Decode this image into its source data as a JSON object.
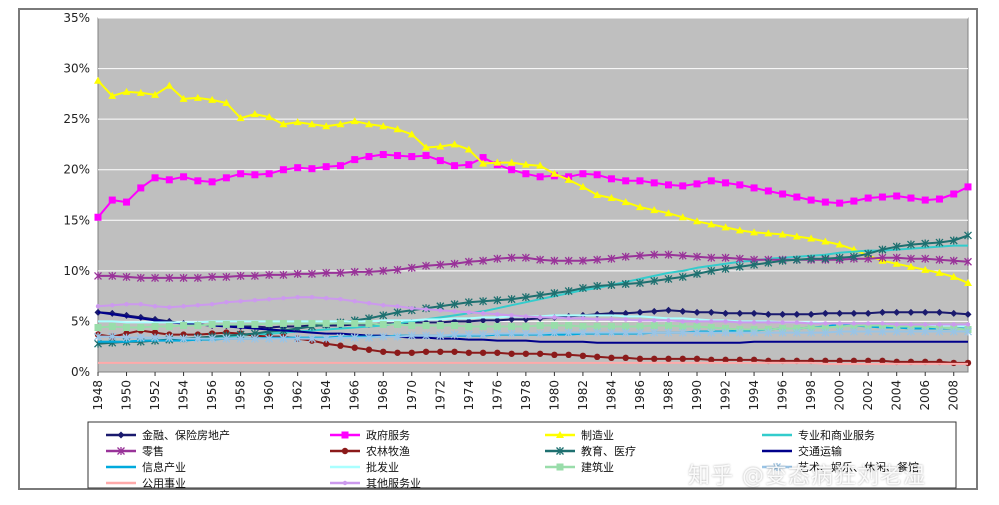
{
  "chart_data": {
    "type": "line",
    "x": [
      1948,
      1949,
      1950,
      1951,
      1952,
      1953,
      1954,
      1955,
      1956,
      1957,
      1958,
      1959,
      1960,
      1961,
      1962,
      1963,
      1964,
      1965,
      1966,
      1967,
      1968,
      1969,
      1970,
      1971,
      1972,
      1973,
      1974,
      1975,
      1976,
      1977,
      1978,
      1979,
      1980,
      1981,
      1982,
      1983,
      1984,
      1985,
      1986,
      1987,
      1988,
      1989,
      1990,
      1991,
      1992,
      1993,
      1994,
      1995,
      1996,
      1997,
      1998,
      1999,
      2000,
      2001,
      2002,
      2003,
      2004,
      2005,
      2006,
      2007,
      2008,
      2009
    ],
    "x_tick_labels": [
      "1948",
      "1950",
      "1952",
      "1954",
      "1956",
      "1958",
      "1960",
      "1962",
      "1964",
      "1966",
      "1968",
      "1970",
      "1972",
      "1974",
      "1976",
      "1978",
      "1980",
      "1982",
      "1984",
      "1986",
      "1988",
      "1990",
      "1992",
      "1994",
      "1996",
      "1998",
      "2000",
      "2002",
      "2004",
      "2006",
      "2008"
    ],
    "y_tick_labels": [
      "0%",
      "5%",
      "10%",
      "15%",
      "20%",
      "25%",
      "30%",
      "35%"
    ],
    "ylim": [
      0,
      35
    ],
    "grid": true,
    "legend_placement": "bottom",
    "series": [
      {
        "name": "金融、保险房地产",
        "color": "#1a1a6e",
        "marker": "diamond",
        "values": [
          5.9,
          5.8,
          5.6,
          5.4,
          5.2,
          5.0,
          4.8,
          4.7,
          4.6,
          4.6,
          4.5,
          4.5,
          4.4,
          4.5,
          4.5,
          4.6,
          4.6,
          4.6,
          4.7,
          4.7,
          4.8,
          4.8,
          4.9,
          4.9,
          4.9,
          5.0,
          5.0,
          5.1,
          5.1,
          5.2,
          5.2,
          5.3,
          5.4,
          5.5,
          5.6,
          5.7,
          5.8,
          5.8,
          5.9,
          6.0,
          6.1,
          6.0,
          5.9,
          5.9,
          5.8,
          5.8,
          5.8,
          5.7,
          5.7,
          5.7,
          5.7,
          5.8,
          5.8,
          5.8,
          5.8,
          5.9,
          5.9,
          5.9,
          5.9,
          5.9,
          5.8,
          5.7
        ]
      },
      {
        "name": "政府服务",
        "color": "#ff00ff",
        "marker": "square",
        "values": [
          15.3,
          17.0,
          16.8,
          18.2,
          19.2,
          19.0,
          19.3,
          18.9,
          18.8,
          19.2,
          19.6,
          19.5,
          19.6,
          20.0,
          20.2,
          20.1,
          20.3,
          20.4,
          21.0,
          21.3,
          21.5,
          21.4,
          21.3,
          21.4,
          20.9,
          20.4,
          20.5,
          21.2,
          20.5,
          20.0,
          19.6,
          19.3,
          19.4,
          19.3,
          19.6,
          19.5,
          19.1,
          18.9,
          18.9,
          18.7,
          18.5,
          18.4,
          18.6,
          18.9,
          18.7,
          18.5,
          18.2,
          17.9,
          17.6,
          17.3,
          17.0,
          16.8,
          16.7,
          16.9,
          17.2,
          17.3,
          17.4,
          17.2,
          17.0,
          17.1,
          17.6,
          18.3
        ]
      },
      {
        "name": "制造业",
        "color": "#ffff00",
        "marker": "triangle",
        "values": [
          28.8,
          27.3,
          27.7,
          27.6,
          27.4,
          28.3,
          27.0,
          27.1,
          26.9,
          26.6,
          25.1,
          25.5,
          25.2,
          24.5,
          24.7,
          24.5,
          24.3,
          24.5,
          24.8,
          24.5,
          24.3,
          24.0,
          23.5,
          22.2,
          22.3,
          22.5,
          22.0,
          20.6,
          20.7,
          20.7,
          20.5,
          20.4,
          19.6,
          19.0,
          18.3,
          17.5,
          17.2,
          16.8,
          16.3,
          16.0,
          15.7,
          15.3,
          14.9,
          14.6,
          14.3,
          14.0,
          13.8,
          13.7,
          13.6,
          13.4,
          13.2,
          12.9,
          12.6,
          12.1,
          11.5,
          11.0,
          10.7,
          10.4,
          10.1,
          9.8,
          9.4,
          8.8
        ]
      },
      {
        "name": "专业和商业服务",
        "color": "#33cccc",
        "marker": "none",
        "values": [
          3.0,
          3.0,
          3.0,
          3.1,
          3.1,
          3.2,
          3.2,
          3.3,
          3.4,
          3.5,
          3.6,
          3.7,
          3.8,
          3.9,
          4.0,
          4.1,
          4.2,
          4.3,
          4.4,
          4.5,
          4.6,
          4.8,
          5.0,
          5.2,
          5.4,
          5.6,
          5.8,
          6.0,
          6.3,
          6.6,
          6.9,
          7.2,
          7.5,
          7.8,
          8.1,
          8.3,
          8.6,
          8.9,
          9.2,
          9.5,
          9.8,
          10.0,
          10.3,
          10.5,
          10.7,
          10.9,
          11.0,
          11.2,
          11.3,
          11.4,
          11.5,
          11.6,
          11.8,
          11.9,
          12.0,
          12.0,
          12.1,
          12.2,
          12.3,
          12.4,
          12.5,
          12.5
        ]
      },
      {
        "name": "零售",
        "color": "#993399",
        "marker": "star",
        "values": [
          9.5,
          9.5,
          9.4,
          9.3,
          9.3,
          9.3,
          9.3,
          9.3,
          9.4,
          9.4,
          9.5,
          9.5,
          9.6,
          9.6,
          9.7,
          9.7,
          9.8,
          9.8,
          9.9,
          9.9,
          10.0,
          10.1,
          10.3,
          10.5,
          10.6,
          10.7,
          10.9,
          11.0,
          11.2,
          11.3,
          11.3,
          11.1,
          11.0,
          11.0,
          11.0,
          11.1,
          11.2,
          11.4,
          11.5,
          11.6,
          11.6,
          11.5,
          11.4,
          11.3,
          11.3,
          11.2,
          11.1,
          11.1,
          11.1,
          11.1,
          11.1,
          11.1,
          11.1,
          11.2,
          11.2,
          11.3,
          11.3,
          11.2,
          11.2,
          11.1,
          11.0,
          10.9
        ]
      },
      {
        "name": "农林牧渔",
        "color": "#8b1a1a",
        "marker": "circle",
        "values": [
          3.7,
          3.5,
          3.8,
          4.1,
          3.9,
          3.7,
          3.7,
          3.7,
          3.8,
          3.9,
          3.8,
          3.6,
          3.5,
          3.5,
          3.3,
          3.1,
          2.8,
          2.6,
          2.4,
          2.2,
          2.0,
          1.9,
          1.9,
          2.0,
          2.0,
          2.0,
          1.9,
          1.9,
          1.9,
          1.8,
          1.8,
          1.8,
          1.7,
          1.7,
          1.6,
          1.5,
          1.4,
          1.4,
          1.3,
          1.3,
          1.3,
          1.3,
          1.3,
          1.2,
          1.2,
          1.2,
          1.2,
          1.1,
          1.1,
          1.1,
          1.1,
          1.1,
          1.1,
          1.1,
          1.1,
          1.1,
          1.0,
          1.0,
          1.0,
          1.0,
          0.9,
          0.9
        ]
      },
      {
        "name": "教育、医疗",
        "color": "#1e7070",
        "marker": "star",
        "values": [
          2.8,
          2.9,
          3.0,
          3.0,
          3.1,
          3.2,
          3.3,
          3.4,
          3.5,
          3.6,
          3.7,
          3.8,
          4.0,
          4.1,
          4.3,
          4.5,
          4.7,
          4.9,
          5.1,
          5.3,
          5.6,
          5.9,
          6.1,
          6.3,
          6.5,
          6.7,
          6.9,
          7.0,
          7.1,
          7.2,
          7.4,
          7.6,
          7.8,
          8.0,
          8.3,
          8.5,
          8.6,
          8.7,
          8.8,
          9.0,
          9.2,
          9.4,
          9.7,
          10.0,
          10.2,
          10.4,
          10.6,
          10.8,
          11.0,
          11.1,
          11.2,
          11.2,
          11.3,
          11.4,
          11.7,
          12.1,
          12.4,
          12.6,
          12.7,
          12.8,
          13.0,
          13.5
        ]
      },
      {
        "name": "交通运输",
        "color": "#00008b",
        "marker": "none",
        "values": [
          5.9,
          5.7,
          5.5,
          5.3,
          5.1,
          4.9,
          4.8,
          4.7,
          4.6,
          4.5,
          4.4,
          4.3,
          4.2,
          4.1,
          4.0,
          3.9,
          3.8,
          3.8,
          3.7,
          3.6,
          3.6,
          3.5,
          3.4,
          3.4,
          3.3,
          3.3,
          3.2,
          3.2,
          3.1,
          3.1,
          3.1,
          3.0,
          3.0,
          3.0,
          3.0,
          2.9,
          2.9,
          2.9,
          2.9,
          2.9,
          2.9,
          2.9,
          2.9,
          2.9,
          2.9,
          2.9,
          3.0,
          3.0,
          3.0,
          3.0,
          3.0,
          3.0,
          3.0,
          3.0,
          3.0,
          3.0,
          3.0,
          3.0,
          3.0,
          3.0,
          3.0,
          3.0
        ]
      },
      {
        "name": "信息产业",
        "color": "#00aadd",
        "marker": "none",
        "values": [
          3.0,
          3.0,
          3.0,
          3.1,
          3.1,
          3.1,
          3.1,
          3.2,
          3.2,
          3.3,
          3.3,
          3.3,
          3.4,
          3.4,
          3.4,
          3.4,
          3.4,
          3.5,
          3.5,
          3.5,
          3.5,
          3.6,
          3.6,
          3.6,
          3.6,
          3.6,
          3.6,
          3.6,
          3.7,
          3.7,
          3.7,
          3.7,
          3.7,
          3.7,
          3.8,
          3.8,
          3.8,
          3.8,
          3.8,
          3.9,
          3.9,
          3.9,
          4.0,
          4.0,
          4.0,
          4.1,
          4.1,
          4.2,
          4.3,
          4.3,
          4.4,
          4.5,
          4.7,
          4.6,
          4.5,
          4.4,
          4.4,
          4.3,
          4.3,
          4.3,
          4.3,
          4.3
        ]
      },
      {
        "name": "批发业",
        "color": "#aaffff",
        "marker": "none",
        "values": [
          5.0,
          5.0,
          4.9,
          4.9,
          4.9,
          4.9,
          4.9,
          4.9,
          5.0,
          5.0,
          5.0,
          5.0,
          5.0,
          5.0,
          5.0,
          5.0,
          5.0,
          5.0,
          5.0,
          5.0,
          5.1,
          5.1,
          5.1,
          5.2,
          5.2,
          5.3,
          5.3,
          5.4,
          5.4,
          5.5,
          5.5,
          5.5,
          5.6,
          5.6,
          5.6,
          5.6,
          5.6,
          5.5,
          5.5,
          5.4,
          5.3,
          5.3,
          5.2,
          5.1,
          5.1,
          5.0,
          5.0,
          5.0,
          4.9,
          4.9,
          4.9,
          4.8,
          4.8,
          4.8,
          4.8,
          4.7,
          4.7,
          4.7,
          4.6,
          4.6,
          4.6,
          4.5
        ]
      },
      {
        "name": "建筑业",
        "color": "#99ddaa",
        "marker": "square",
        "values": [
          4.4,
          4.5,
          4.4,
          4.4,
          4.5,
          4.5,
          4.6,
          4.6,
          4.7,
          4.7,
          4.7,
          4.7,
          4.8,
          4.8,
          4.8,
          4.8,
          4.8,
          4.8,
          4.8,
          4.8,
          4.7,
          4.7,
          4.6,
          4.6,
          4.6,
          4.6,
          4.5,
          4.5,
          4.5,
          4.5,
          4.5,
          4.6,
          4.6,
          4.6,
          4.5,
          4.5,
          4.5,
          4.5,
          4.5,
          4.6,
          4.6,
          4.5,
          4.5,
          4.4,
          4.3,
          4.2,
          4.2,
          4.2,
          4.3,
          4.3,
          4.4,
          4.4,
          4.5,
          4.6,
          4.6,
          4.6,
          4.5,
          4.5,
          4.5,
          4.4,
          4.3,
          4.2
        ]
      },
      {
        "name": "艺术、娱乐、休闲、餐馆",
        "color": "#99c4e6",
        "marker": "star",
        "values": [
          3.5,
          3.5,
          3.4,
          3.4,
          3.4,
          3.4,
          3.3,
          3.3,
          3.3,
          3.3,
          3.3,
          3.3,
          3.3,
          3.3,
          3.3,
          3.3,
          3.3,
          3.4,
          3.4,
          3.4,
          3.5,
          3.5,
          3.6,
          3.6,
          3.6,
          3.7,
          3.7,
          3.7,
          3.8,
          3.8,
          3.8,
          3.8,
          3.9,
          3.9,
          3.9,
          3.9,
          3.9,
          3.9,
          3.9,
          3.9,
          3.9,
          3.9,
          3.9,
          3.9,
          3.9,
          3.9,
          3.9,
          3.9,
          3.9,
          3.9,
          3.9,
          3.9,
          4.0,
          4.0,
          4.0,
          4.0,
          4.0,
          4.0,
          4.0,
          4.0,
          4.0,
          4.0
        ]
      },
      {
        "name": "公用事业",
        "color": "#ffaaaa",
        "marker": "none",
        "values": [
          0.9,
          0.9,
          0.9,
          0.9,
          0.9,
          0.9,
          0.9,
          0.9,
          0.9,
          0.9,
          0.9,
          0.9,
          0.9,
          0.9,
          0.9,
          0.9,
          0.9,
          0.9,
          0.9,
          0.9,
          0.9,
          0.9,
          0.9,
          0.9,
          0.9,
          0.9,
          0.9,
          0.9,
          0.9,
          0.9,
          0.9,
          0.9,
          0.9,
          0.9,
          0.9,
          0.9,
          0.9,
          0.9,
          0.9,
          0.9,
          0.9,
          0.9,
          0.9,
          0.9,
          0.9,
          0.9,
          0.9,
          0.9,
          0.9,
          0.9,
          0.9,
          0.8,
          0.8,
          0.8,
          0.8,
          0.8,
          0.8,
          0.8,
          0.8,
          0.8,
          0.8,
          0.8
        ]
      },
      {
        "name": "其他服务业",
        "color": "#cc99ee",
        "marker": "dot",
        "values": [
          6.5,
          6.6,
          6.7,
          6.7,
          6.5,
          6.4,
          6.5,
          6.6,
          6.7,
          6.9,
          7.0,
          7.1,
          7.2,
          7.3,
          7.4,
          7.4,
          7.3,
          7.2,
          7.0,
          6.8,
          6.6,
          6.5,
          6.3,
          6.2,
          6.1,
          6.0,
          5.9,
          5.8,
          5.7,
          5.6,
          5.5,
          5.4,
          5.4,
          5.3,
          5.3,
          5.2,
          5.2,
          5.2,
          5.1,
          5.1,
          5.1,
          5.0,
          5.0,
          5.0,
          5.0,
          4.9,
          4.9,
          4.9,
          4.9,
          4.9,
          4.8,
          4.8,
          4.8,
          4.8,
          4.8,
          4.8,
          4.7,
          4.7,
          4.7,
          4.7,
          4.7,
          4.7
        ]
      }
    ]
  },
  "watermark": {
    "text": "知乎 @变态病狂刘老湿"
  },
  "style": {
    "plot_background": "#bfbfbf",
    "grid_color": "#ffffff"
  }
}
